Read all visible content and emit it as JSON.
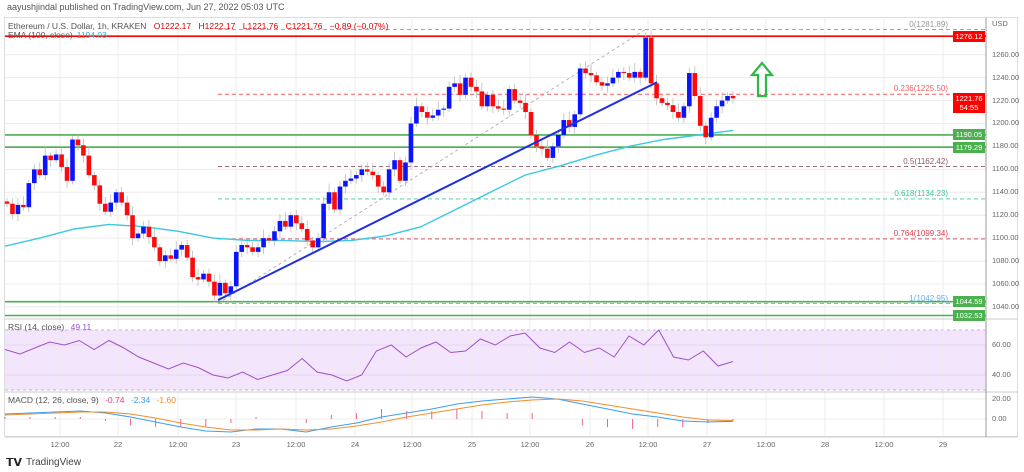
{
  "publisher_line": "aayushjindal published on TradingView.com, Jun 27, 2022 05:03 UTC",
  "legend": {
    "symbol": "Ethereum / U.S. Dollar, 1h, KRAKEN",
    "open": "O1222.17",
    "high": "H1222.17",
    "low": "L1221.76",
    "close": "C1221.76",
    "change": "−0.89 (−0.07%)",
    "ema_label": "EMA (100, close)",
    "ema_value": "1194.03"
  },
  "indicators": {
    "rsi_label": "RSI (14, close)",
    "rsi_value": "49.11",
    "macd_label": "MACD (12, 26, close, 9)",
    "macd_hist": "-0.74",
    "macd_line": "-2.34",
    "macd_signal": "-1.60"
  },
  "branding": "TradingView",
  "price_axis": {
    "unit": "USD",
    "ticks": [
      "1260.00",
      "1240.00",
      "1220.00",
      "1200.00",
      "1180.00",
      "1160.00",
      "1140.00",
      "1120.00",
      "1100.00",
      "1080.00",
      "1060.00",
      "1040.00"
    ]
  },
  "rsi_axis": [
    "60.00",
    "40.00"
  ],
  "macd_axis": [
    "20.00",
    "0.00"
  ],
  "time_axis": [
    "12:00",
    "22",
    "12:00",
    "23",
    "12:00",
    "24",
    "12:00",
    "25",
    "12:00",
    "26",
    "12:00",
    "27",
    "12:00",
    "28",
    "12:00",
    "29"
  ],
  "price_tags": [
    {
      "label": "1276.12",
      "color": "#ff0000"
    },
    {
      "label": "1190.05",
      "color": "#4caf50"
    },
    {
      "label": "1179.29",
      "color": "#4caf50"
    },
    {
      "label": "1044.59",
      "color": "#4caf50"
    },
    {
      "label": "1032.53",
      "color": "#4caf50"
    }
  ],
  "current_price": {
    "label": "1221.76",
    "countdown": "54:55",
    "color": "#ff0000"
  },
  "fib_levels": [
    {
      "label": "0(1281.89)",
      "value": 1281.89,
      "color": "#999999"
    },
    {
      "label": "0.236(1225.50)",
      "value": 1225.5,
      "color": "#f06060"
    },
    {
      "label": "0.5(1162.42)",
      "value": 1162.42,
      "color": "#8a5a6a"
    },
    {
      "label": "0.618(1134.23)",
      "value": 1134.23,
      "color": "#3cc8a0"
    },
    {
      "label": "0.764(1099.34)",
      "value": 1099.34,
      "color": "#e04050"
    },
    {
      "label": "1(1042.95)",
      "value": 1042.95,
      "color": "#60b0f0"
    }
  ],
  "chart_data": {
    "type": "candlestick",
    "title": "Ethereum / U.S. Dollar, 1h, KRAKEN",
    "ylim": [
      1030,
      1290
    ],
    "colors": {
      "up": "#0a14ff",
      "down": "#ff0a0a",
      "ema": "#3cc8e0",
      "trendline": "#1f2fe0",
      "resistance": "#ff0000",
      "support": "#4caf50",
      "arrow": "#2db84a"
    },
    "closes": [
      1130,
      1121,
      1129,
      1127,
      1148,
      1160,
      1155,
      1172,
      1168,
      1173,
      1162,
      1150,
      1186,
      1181,
      1172,
      1155,
      1146,
      1130,
      1123,
      1131,
      1140,
      1131,
      1120,
      1100,
      1104,
      1110,
      1101,
      1092,
      1080,
      1085,
      1082,
      1090,
      1094,
      1083,
      1066,
      1064,
      1069,
      1062,
      1050,
      1061,
      1052,
      1058,
      1088,
      1094,
      1092,
      1088,
      1092,
      1100,
      1098,
      1106,
      1115,
      1110,
      1120,
      1113,
      1108,
      1098,
      1092,
      1100,
      1130,
      1140,
      1125,
      1145,
      1150,
      1152,
      1155,
      1160,
      1158,
      1155,
      1145,
      1140,
      1160,
      1168,
      1150,
      1166,
      1200,
      1215,
      1210,
      1205,
      1207,
      1212,
      1213,
      1232,
      1235,
      1225,
      1240,
      1232,
      1228,
      1215,
      1225,
      1215,
      1213,
      1212,
      1230,
      1220,
      1218,
      1210,
      1190,
      1180,
      1178,
      1170,
      1180,
      1190,
      1203,
      1197,
      1208,
      1248,
      1244,
      1242,
      1236,
      1233,
      1235,
      1240,
      1245,
      1244,
      1240,
      1245,
      1240,
      1275,
      1235,
      1222,
      1218,
      1216,
      1210,
      1205,
      1215,
      1244,
      1224,
      1198,
      1188,
      1205,
      1215,
      1220,
      1224,
      1222
    ],
    "ema_100": [
      1093,
      1100,
      1108,
      1112,
      1110,
      1106,
      1100,
      1098,
      1098,
      1097,
      1098,
      1102,
      1110,
      1125,
      1140,
      1155,
      1163,
      1172,
      1180,
      1186,
      1190,
      1194
    ],
    "horizontal_lines": [
      {
        "value": 1276.12,
        "kind": "resistance"
      },
      {
        "value": 1190.05,
        "kind": "support"
      },
      {
        "value": 1179.29,
        "kind": "support"
      },
      {
        "value": 1044.59,
        "kind": "support"
      },
      {
        "value": 1032.53,
        "kind": "support"
      }
    ],
    "trendline": {
      "from": 1046,
      "to": 1236
    },
    "fib_span": {
      "low": 1042.95,
      "high": 1281.89
    },
    "rsi": [
      57,
      54,
      58,
      62,
      60,
      63,
      57,
      63,
      58,
      52,
      48,
      44,
      48,
      45,
      40,
      38,
      42,
      37,
      40,
      43,
      51,
      42,
      40,
      36,
      40,
      56,
      60,
      52,
      58,
      62,
      55,
      56,
      64,
      60,
      66,
      68,
      58,
      55,
      62,
      55,
      58,
      52,
      66,
      60,
      70,
      52,
      50,
      56,
      46,
      49
    ],
    "rsi_bands": [
      70,
      30
    ],
    "macd": [
      5,
      6,
      7,
      8,
      6,
      2,
      -3,
      -8,
      -12,
      -13,
      -10,
      -10,
      -13,
      -8,
      -4,
      2,
      6,
      10,
      15,
      18,
      20,
      22,
      20,
      15,
      10,
      5,
      2,
      -2,
      -3,
      -2.34
    ],
    "macd_signal": [
      4,
      5,
      6,
      7,
      7,
      5,
      1,
      -4,
      -8,
      -11,
      -11,
      -10,
      -11,
      -10,
      -7,
      -3,
      2,
      6,
      10,
      14,
      17,
      19,
      20,
      18,
      14,
      10,
      6,
      2,
      -1,
      -1.6
    ]
  }
}
